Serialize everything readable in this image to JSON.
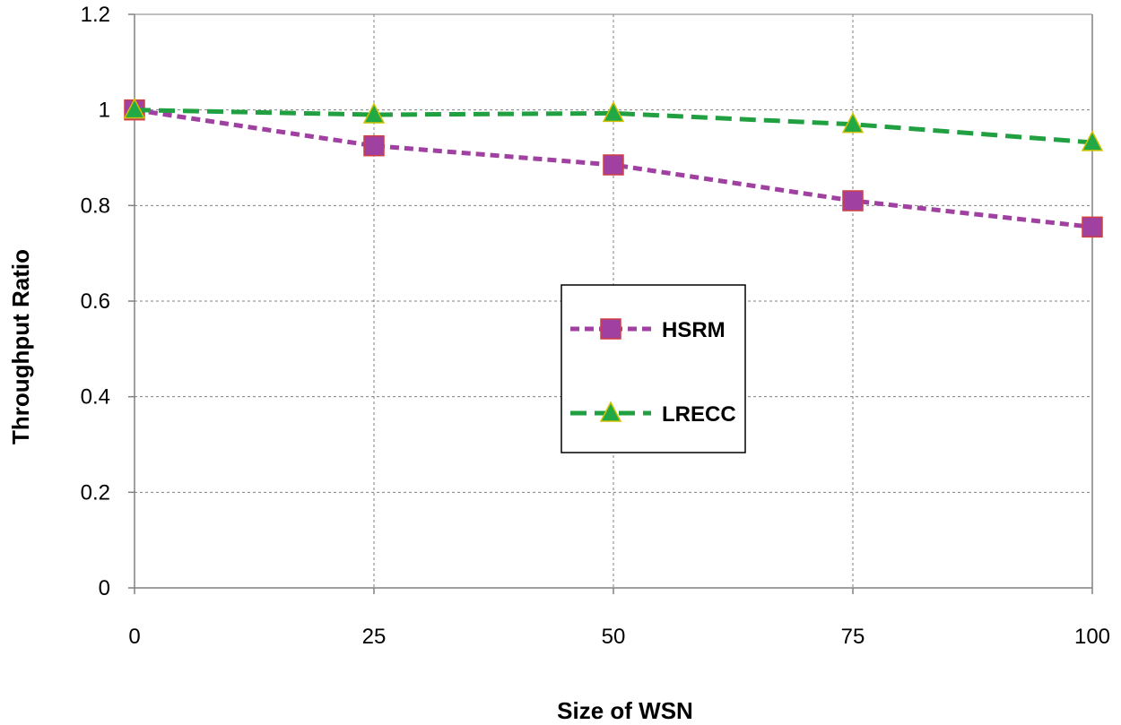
{
  "chart_data": {
    "type": "line",
    "title": "",
    "xlabel": "Size of WSN",
    "ylabel": "Throughput Ratio",
    "x": [
      0,
      25,
      50,
      75,
      100
    ],
    "x_ticks": [
      "0",
      "25",
      "50",
      "75",
      "100"
    ],
    "y_ticks": [
      "0",
      "0.2",
      "0.4",
      "0.6",
      "0.8",
      "1",
      "1.2"
    ],
    "xlim": [
      0,
      100
    ],
    "ylim": [
      0,
      1.2
    ],
    "grid": true,
    "legend_position": "center",
    "series": [
      {
        "name": "HSRM",
        "values": [
          1.0,
          0.925,
          0.885,
          0.81,
          0.755
        ],
        "line_color": "#A040A0",
        "marker": "square",
        "marker_fill": "#A040A0",
        "marker_edge": "#D04040"
      },
      {
        "name": "LRECC",
        "values": [
          1.0,
          0.99,
          0.993,
          0.97,
          0.932
        ],
        "line_color": "#20A040",
        "marker": "triangle",
        "marker_fill": "#22A845",
        "marker_edge": "#D0C000"
      }
    ]
  }
}
